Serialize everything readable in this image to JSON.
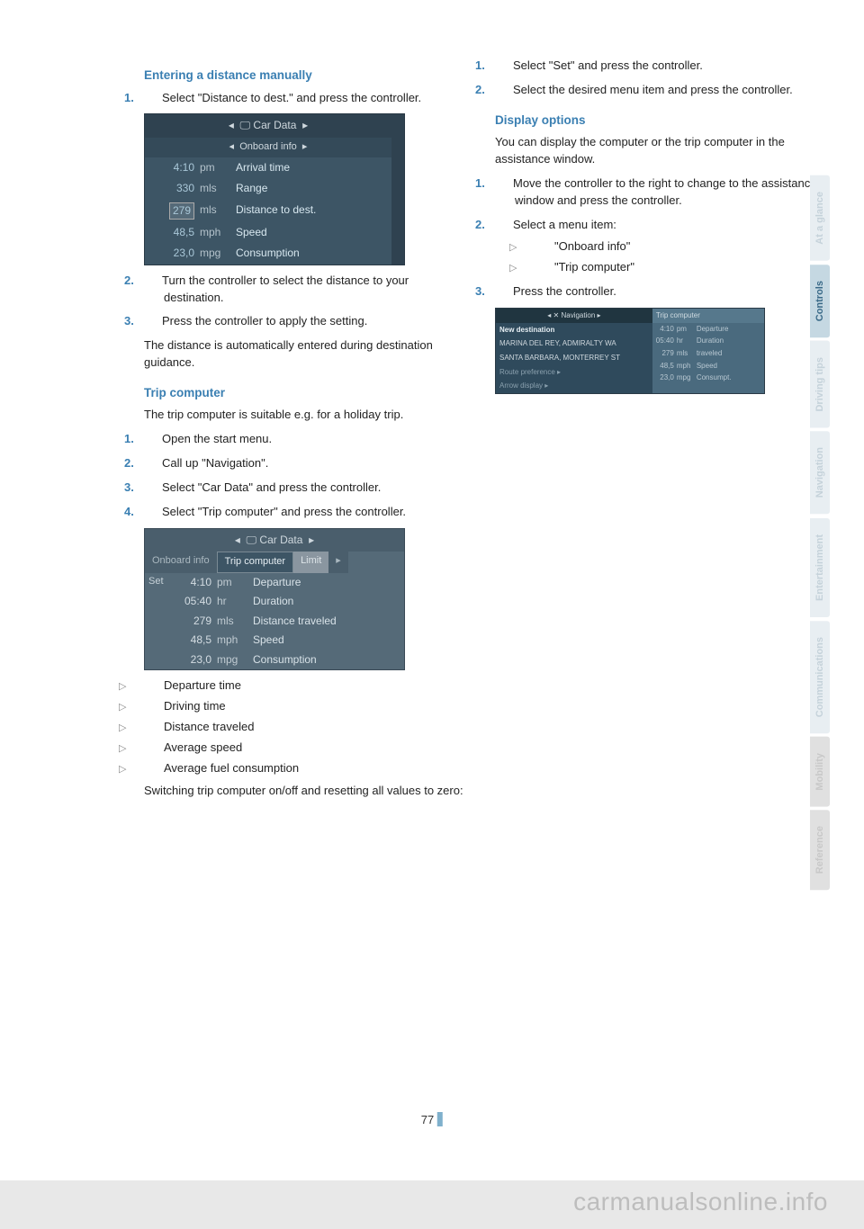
{
  "page": {
    "number": "77",
    "watermark": "carmanualsonline.info"
  },
  "sidebar": {
    "tabs": [
      "At a glance",
      "Controls",
      "Driving tips",
      "Navigation",
      "Entertainment",
      "Communications",
      "Mobility",
      "Reference"
    ],
    "active_index": 1
  },
  "left": {
    "h1": "Entering a distance manually",
    "h1_steps": [
      "Select \"Distance to dest.\" and press the controller.",
      "Turn the controller to select the distance to your destination.",
      "Press the controller to apply the setting."
    ],
    "h1_note": "The distance is automatically entered during destination guidance.",
    "screen1": {
      "title": "Car Data",
      "subtitle": "Onboard info",
      "rows": [
        {
          "v": "4:10",
          "u": "pm",
          "l": "Arrival time",
          "boxed": false
        },
        {
          "v": "330",
          "u": "mls",
          "l": "Range",
          "boxed": false
        },
        {
          "v": "279",
          "u": "mls",
          "l": "Distance to dest.",
          "boxed": true
        },
        {
          "v": "48,5",
          "u": "mph",
          "l": "Speed",
          "boxed": false
        },
        {
          "v": "23,0",
          "u": "mpg",
          "l": "Consumption",
          "boxed": false
        }
      ]
    },
    "h2": "Trip computer",
    "h2_intro": "The trip computer is suitable e.g. for a holiday trip.",
    "h2_steps": [
      "Open the start menu.",
      "Call up \"Navigation\".",
      "Select \"Car Data\" and press the controller.",
      "Select \"Trip computer\" and press the controller."
    ],
    "screen2": {
      "title": "Car Data",
      "tabs": [
        "Onboard info",
        "Trip computer",
        "Limit"
      ],
      "set_label": "Set",
      "rows": [
        {
          "v": "4:10",
          "u": "pm",
          "l": "Departure"
        },
        {
          "v": "05:40",
          "u": "hr",
          "l": "Duration"
        },
        {
          "v": "279",
          "u": "mls",
          "l": "Distance traveled"
        },
        {
          "v": "48,5",
          "u": "mph",
          "l": "Speed"
        },
        {
          "v": "23,0",
          "u": "mpg",
          "l": "Consumption"
        }
      ]
    },
    "bullets": [
      "Departure time",
      "Driving time",
      "Distance traveled",
      "Average speed",
      "Average fuel consumption"
    ],
    "reset_note": "Switching trip computer on/off and resetting all values to zero:"
  },
  "right": {
    "top_steps": [
      "Select \"Set\" and press the controller.",
      "Select the desired menu item and press the controller."
    ],
    "h3": "Display options",
    "h3_intro": "You can display the computer or the trip computer in the assistance window.",
    "h3_steps": {
      "s1": "Move the controller to the right to change to the assistance window and press the controller.",
      "s2": "Select a menu item:",
      "s2_opts": [
        "\"Onboard info\"",
        "\"Trip computer\""
      ],
      "s3": "Press the controller."
    },
    "screen3": {
      "nav_title": "Navigation",
      "left_rows": [
        "New destination",
        "MARINA DEL REY, ADMIRALTY WA",
        "SANTA BARBARA, MONTERREY ST",
        "Route preference ▸",
        "Arrow display ▸"
      ],
      "right_title": "Trip computer",
      "right_rows": [
        {
          "v": "4:10",
          "u": "pm",
          "l": "Departure"
        },
        {
          "v": "05:40",
          "u": "hr",
          "l": "Duration"
        },
        {
          "v": "279",
          "u": "mls",
          "l": "traveled"
        },
        {
          "v": "48,5",
          "u": "mph",
          "l": "Speed"
        },
        {
          "v": "23,0",
          "u": "mpg",
          "l": "Consumpt."
        }
      ]
    }
  },
  "colors": {
    "accent": "#3a7fb2",
    "screen_bg": "#3d5565",
    "screen_bg2": "#556a78"
  }
}
